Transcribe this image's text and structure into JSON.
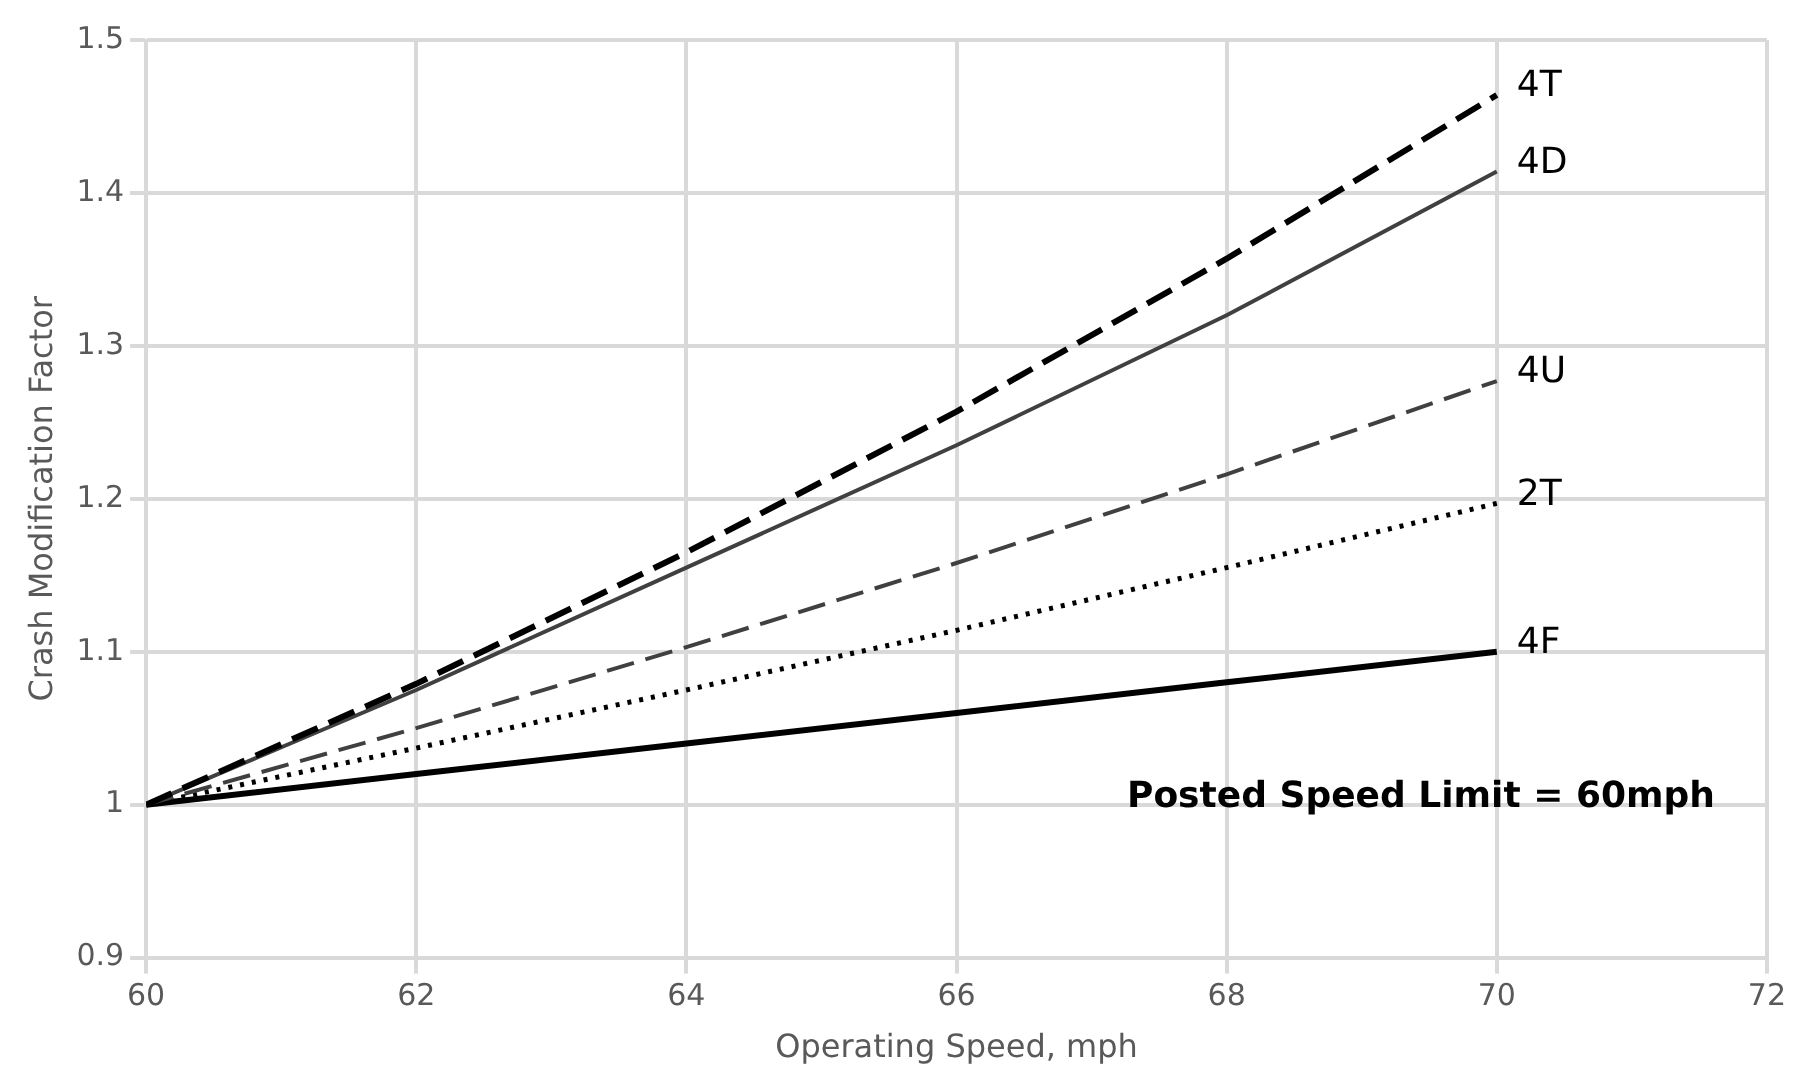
{
  "chart_data": {
    "type": "line",
    "xlabel": "Operating Speed, mph",
    "ylabel": "Crash Modification Factor",
    "x": [
      60,
      62,
      64,
      66,
      68,
      70
    ],
    "series": [
      {
        "name": "4T",
        "color": "#000000",
        "line_style": "dashed",
        "values": [
          1,
          1.079,
          1.165,
          1.257,
          1.357,
          1.464
        ]
      },
      {
        "name": "4D",
        "color": "#404040",
        "line_style": "solid",
        "values": [
          1,
          1.075,
          1.155,
          1.235,
          1.32,
          1.414
        ]
      },
      {
        "name": "4U",
        "color": "#404040",
        "line_style": "dashed",
        "values": [
          1,
          1.05,
          1.103,
          1.158,
          1.216,
          1.277
        ]
      },
      {
        "name": "2T",
        "color": "#000000",
        "line_style": "dotted",
        "values": [
          1,
          1.037,
          1.075,
          1.114,
          1.155,
          1.197
        ]
      },
      {
        "name": "4F",
        "color": "#000000",
        "line_style": "solid",
        "values": [
          1,
          1.02,
          1.04,
          1.06,
          1.08,
          1.1
        ]
      }
    ],
    "xlim": [
      60,
      72
    ],
    "xticks": [
      60,
      62,
      64,
      66,
      68,
      70,
      72
    ],
    "ylim": [
      0.9,
      1.5
    ],
    "yticks": [
      0.9,
      1,
      1.1,
      1.2,
      1.3,
      1.4,
      1.5
    ],
    "grid": true,
    "legend": false,
    "marker": "none",
    "annotations": [
      "Posted Speed Limit = 60mph"
    ]
  }
}
